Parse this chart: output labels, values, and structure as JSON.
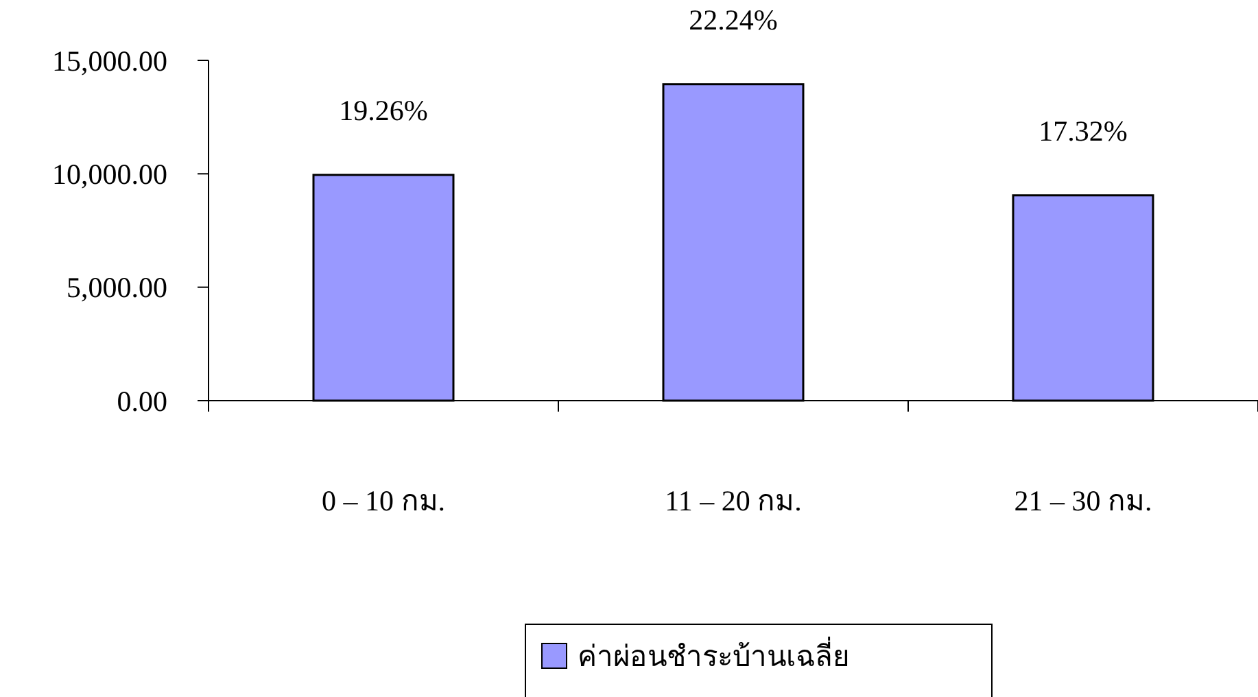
{
  "chart_data": {
    "type": "bar",
    "categories": [
      "0 – 10 กม.",
      "11 – 20 กม.",
      "21 – 30 กม."
    ],
    "series": [
      {
        "name": "ค่าผ่อนชำระบ้านเฉลี่ย",
        "color": "#9999ff",
        "values": [
          9950,
          13950,
          9050
        ]
      }
    ],
    "annotations": [
      {
        "text": "19.26%",
        "x": "0 – 10 กม.",
        "y": 9950
      },
      {
        "text": "22.24%",
        "x": "11 – 20 กม.",
        "y": 13950
      },
      {
        "text": "17.32%",
        "x": "21 – 30 กม.",
        "y": 9050
      }
    ],
    "ylim": [
      0,
      15000
    ],
    "yticks": [
      {
        "value": 0,
        "label": "0.00"
      },
      {
        "value": 5000,
        "label": "5,000.00"
      },
      {
        "value": 10000,
        "label": "10,000.00"
      },
      {
        "value": 15000,
        "label": "15,000.00"
      }
    ],
    "grid": false,
    "legend": "bottom"
  }
}
